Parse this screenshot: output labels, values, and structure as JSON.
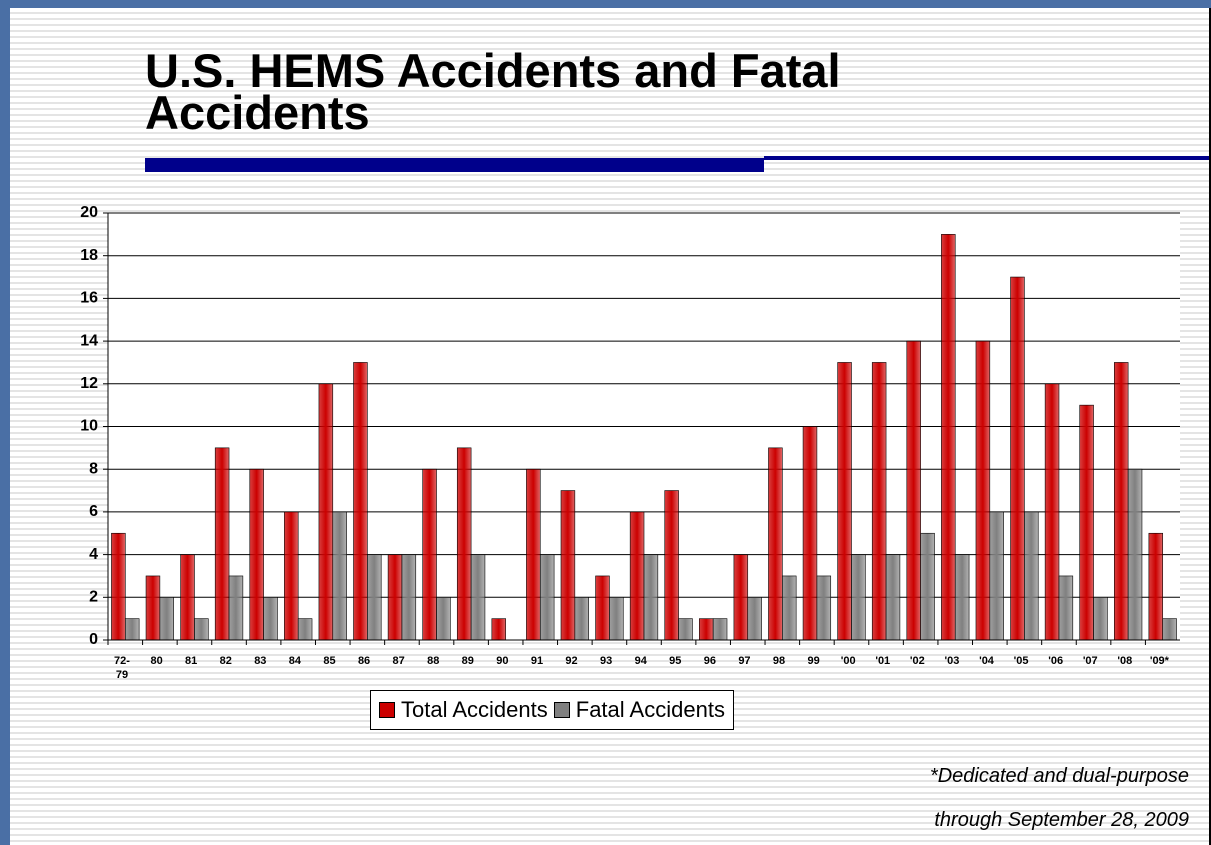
{
  "chart_data": {
    "type": "bar",
    "title": "U.S. HEMS Accidents and Fatal Accidents",
    "categories": [
      "72-79",
      "80",
      "81",
      "82",
      "83",
      "84",
      "85",
      "86",
      "87",
      "88",
      "89",
      "90",
      "91",
      "92",
      "93",
      "94",
      "95",
      "96",
      "97",
      "98",
      "99",
      "'00",
      "'01",
      "'02",
      "'03",
      "'04",
      "'05",
      "'06",
      "'07",
      "'08",
      "'09*"
    ],
    "series": [
      {
        "name": "Total Accidents",
        "color": "#cc0000",
        "values": [
          5,
          3,
          4,
          9,
          8,
          6,
          12,
          13,
          4,
          8,
          9,
          1,
          8,
          7,
          3,
          6,
          7,
          1,
          4,
          9,
          10,
          13,
          13,
          14,
          19,
          14,
          17,
          12,
          11,
          13,
          5
        ]
      },
      {
        "name": "Fatal Accidents",
        "color": "#808080",
        "values": [
          1,
          2,
          1,
          3,
          2,
          1,
          6,
          4,
          4,
          2,
          4,
          0,
          4,
          2,
          2,
          4,
          1,
          1,
          2,
          3,
          3,
          4,
          4,
          5,
          4,
          6,
          6,
          3,
          2,
          8,
          1
        ]
      }
    ],
    "ylim": [
      0,
      20
    ],
    "yticks": [
      0,
      2,
      4,
      6,
      8,
      10,
      12,
      14,
      16,
      18,
      20
    ],
    "grid": true,
    "legend": "bottom",
    "notes": [
      "*Dedicated and dual-purpose",
      "through September 28, 2009"
    ]
  }
}
